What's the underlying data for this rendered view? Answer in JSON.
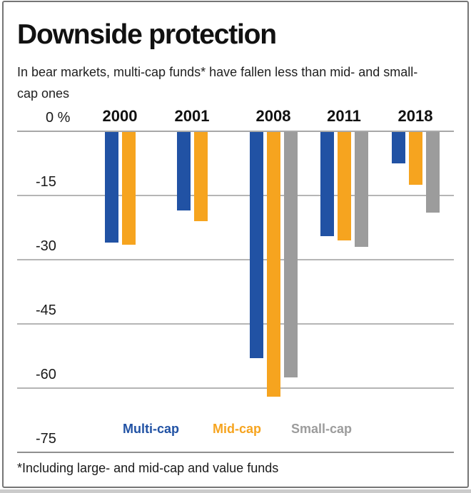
{
  "page": {
    "title": "Downside protection",
    "subtitle": "In bear markets, multi-cap funds* have fallen less than mid- and small-\ncap ones",
    "footnote": "*Including large- and mid-cap and value funds"
  },
  "chart_data": {
    "type": "bar",
    "title": "Downside protection",
    "categories": [
      "2000",
      "2001",
      "2008",
      "2011",
      "2018"
    ],
    "series": [
      {
        "name": "Multi-cap",
        "color": "#2152a4",
        "values": [
          -26,
          -18.5,
          -53,
          -24.5,
          -7.5
        ]
      },
      {
        "name": "Mid-cap",
        "color": "#f6a41f",
        "values": [
          -26.5,
          -21,
          -62,
          -25.5,
          -12.5
        ]
      },
      {
        "name": "Small-cap",
        "color": "#9c9c9c",
        "values": [
          null,
          null,
          -57.5,
          -27,
          -19
        ]
      }
    ],
    "unit": "%",
    "ylim": [
      -75,
      0
    ],
    "yticks": [
      0,
      -15,
      -30,
      -45,
      -60,
      -75
    ],
    "ytick_labels": [
      "0 %",
      "-15",
      "-30",
      "-45",
      "-60",
      "-75"
    ],
    "grid": true,
    "legend_position": "bottom-inside"
  },
  "colors": {
    "multi_cap": "#2152a4",
    "mid_cap": "#f6a41f",
    "small_cap": "#9c9c9c",
    "gridline": "#b5b5b5",
    "axis_bottom_line": "#8f8f8f",
    "card_border": "#757575",
    "bottom_strip": "#cbcbcb"
  }
}
